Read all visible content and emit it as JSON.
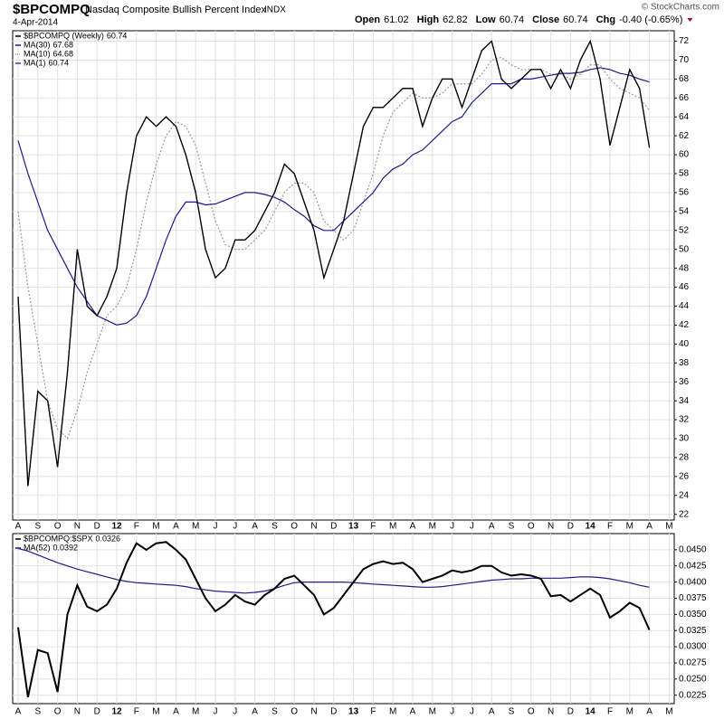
{
  "chart_data": [
    {
      "type": "line",
      "title": "$BPCOMPQ",
      "subtitle": "Nasdaq Composite Bullish Percent Index",
      "exchange": "INDX",
      "date": "4-Apr-2014",
      "source": "© StockCharts.com",
      "stats": [
        [
          "Open",
          "61.02"
        ],
        [
          "High",
          "62.82"
        ],
        [
          "Low",
          "60.74"
        ],
        [
          "Close",
          "60.74"
        ],
        [
          "Chg",
          "-0.40 (-0.65%)"
        ]
      ],
      "categories": [
        "A",
        null,
        "S",
        null,
        "O",
        null,
        "N",
        null,
        "D",
        null,
        "12",
        null,
        "F",
        null,
        "M",
        null,
        "A",
        null,
        "M",
        null,
        "J",
        null,
        "J",
        null,
        "A",
        null,
        "S",
        null,
        "O",
        null,
        "N",
        null,
        "D",
        null,
        "13",
        null,
        "F",
        null,
        "M",
        null,
        "A",
        null,
        "M",
        null,
        "J",
        null,
        "J",
        null,
        "A",
        null,
        "S",
        null,
        "O",
        null,
        "N",
        null,
        "D",
        null,
        "14",
        null,
        "F",
        null,
        "M",
        null,
        "A",
        null,
        "M"
      ],
      "series": [
        {
          "name": "$BPCOMPQ (Weekly)",
          "color": "#000000",
          "values": [
            45,
            25,
            35,
            34,
            27,
            37,
            50,
            44,
            43,
            45,
            48,
            56,
            62,
            64,
            63,
            64,
            63,
            60,
            56,
            50,
            47,
            48,
            51,
            51,
            52,
            54,
            56,
            59,
            58,
            55,
            52,
            47,
            50,
            53,
            58,
            63,
            65,
            65,
            66,
            67,
            67,
            63,
            66,
            68,
            68,
            65,
            68,
            71,
            72,
            68,
            67,
            68,
            69,
            69,
            67,
            69,
            67,
            70,
            72,
            68,
            61,
            65,
            69,
            67,
            60.74,
            null,
            null
          ]
        },
        {
          "name": "MA(30)",
          "color": "#1c1c8a",
          "values": [
            61.5,
            58,
            55,
            52,
            50,
            48,
            46,
            44.5,
            43,
            42.5,
            42,
            42.2,
            43,
            45,
            48,
            51,
            53.5,
            55,
            55,
            54.7,
            54.8,
            55.2,
            55.6,
            56,
            56,
            55.8,
            55.5,
            55,
            54.2,
            53.5,
            52.5,
            52,
            52,
            53,
            54,
            55,
            56,
            57.5,
            58.5,
            59,
            60,
            60.5,
            61.5,
            62.5,
            63.5,
            64,
            65.5,
            66.5,
            67.5,
            67.5,
            67.5,
            68,
            68,
            68.2,
            68.4,
            68.6,
            68.6,
            68.7,
            69,
            69.2,
            69,
            68.6,
            68.4,
            68,
            67.68,
            null,
            null
          ]
        },
        {
          "name": "MA(10)",
          "color": "#9a9a9a",
          "dash": true,
          "values": [
            54,
            46,
            40,
            34,
            31,
            30,
            33,
            37,
            40,
            43,
            44,
            46,
            50,
            55,
            59,
            62,
            63.5,
            63,
            61,
            57,
            53,
            50.5,
            50,
            50,
            51,
            52,
            54,
            56,
            57,
            57,
            56,
            53,
            52,
            51,
            52,
            55,
            58,
            62,
            64.5,
            65.5,
            66.5,
            66,
            66,
            66.5,
            67.5,
            67.5,
            67.5,
            68.5,
            70,
            70.3,
            69.5,
            69,
            69,
            69,
            68.5,
            68.5,
            68,
            68.5,
            69.5,
            69.5,
            68,
            67,
            66.5,
            66,
            64.68,
            null,
            null
          ]
        },
        {
          "name": "MA(1)",
          "color": "#3a3ab0",
          "values": [
            45,
            25,
            35,
            34,
            27,
            37,
            50,
            44,
            43,
            45,
            48,
            56,
            62,
            64,
            63,
            64,
            63,
            60,
            56,
            50,
            47,
            48,
            51,
            51,
            52,
            54,
            56,
            59,
            58,
            55,
            52,
            47,
            50,
            53,
            58,
            63,
            65,
            65,
            66,
            67,
            67,
            63,
            66,
            68,
            68,
            65,
            68,
            71,
            72,
            68,
            67,
            68,
            69,
            69,
            67,
            69,
            67,
            70,
            72,
            68,
            61,
            65,
            69,
            67,
            60.74,
            null,
            null
          ]
        }
      ],
      "ylim": [
        21.4,
        73.1
      ],
      "yticks": [
        22,
        24,
        26,
        28,
        30,
        32,
        34,
        36,
        38,
        40,
        42,
        44,
        46,
        48,
        50,
        52,
        54,
        56,
        58,
        60,
        62,
        64,
        66,
        68,
        70,
        72
      ],
      "grid": true
    },
    {
      "type": "line",
      "categories": [
        "A",
        null,
        "S",
        null,
        "O",
        null,
        "N",
        null,
        "D",
        null,
        "12",
        null,
        "F",
        null,
        "M",
        null,
        "A",
        null,
        "M",
        null,
        "J",
        null,
        "J",
        null,
        "A",
        null,
        "S",
        null,
        "O",
        null,
        "N",
        null,
        "D",
        null,
        "13",
        null,
        "F",
        null,
        "M",
        null,
        "A",
        null,
        "M",
        null,
        "J",
        null,
        "J",
        null,
        "A",
        null,
        "S",
        null,
        "O",
        null,
        "N",
        null,
        "D",
        null,
        "14",
        null,
        "F",
        null,
        "M",
        null,
        "A",
        null,
        "M"
      ],
      "series": [
        {
          "name": "$BPCOMPQ:$SPX",
          "color": "#000000",
          "values": [
            0.033,
            0.0222,
            0.0295,
            0.029,
            0.023,
            0.035,
            0.0395,
            0.0362,
            0.0355,
            0.0365,
            0.039,
            0.043,
            0.046,
            0.045,
            0.046,
            0.0462,
            0.045,
            0.0435,
            0.0405,
            0.0375,
            0.0355,
            0.0365,
            0.038,
            0.037,
            0.0365,
            0.038,
            0.039,
            0.0405,
            0.041,
            0.0395,
            0.038,
            0.035,
            0.036,
            0.038,
            0.04,
            0.042,
            0.0428,
            0.0432,
            0.0428,
            0.043,
            0.042,
            0.04,
            0.0405,
            0.041,
            0.0418,
            0.0415,
            0.0418,
            0.0425,
            0.0425,
            0.0415,
            0.041,
            0.0412,
            0.041,
            0.0405,
            0.0378,
            0.038,
            0.037,
            0.038,
            0.039,
            0.038,
            0.0345,
            0.0355,
            0.0368,
            0.036,
            0.0326,
            null,
            null
          ]
        },
        {
          "name": "MA(52)",
          "color": "#1c1c8a",
          "values": [
            0.0452,
            0.0448,
            0.0442,
            0.0436,
            0.043,
            0.0425,
            0.042,
            0.0416,
            0.0412,
            0.0408,
            0.0404,
            0.0401,
            0.0399,
            0.0398,
            0.0397,
            0.0396,
            0.0395,
            0.0393,
            0.039,
            0.0388,
            0.0386,
            0.0385,
            0.0384,
            0.0383,
            0.0384,
            0.0386,
            0.039,
            0.0395,
            0.0399,
            0.04,
            0.04,
            0.04,
            0.04,
            0.04,
            0.0399,
            0.0398,
            0.0397,
            0.0396,
            0.0395,
            0.0394,
            0.0393,
            0.0392,
            0.0392,
            0.0393,
            0.0395,
            0.0397,
            0.0399,
            0.0401,
            0.0403,
            0.0404,
            0.0405,
            0.0405,
            0.0406,
            0.0406,
            0.0406,
            0.0406,
            0.0407,
            0.0408,
            0.0408,
            0.0407,
            0.0405,
            0.0402,
            0.0399,
            0.0395,
            0.0392,
            null,
            null
          ]
        }
      ],
      "ylim": [
        0.0212,
        0.0475
      ],
      "yticks": [
        0.0225,
        {
          "value": 0.025,
          "label": "0.0250"
        },
        0.0275,
        {
          "value": 0.03,
          "label": "0.0300"
        },
        0.0325,
        {
          "value": 0.035,
          "label": "0.0350"
        },
        0.0375,
        {
          "value": 0.04,
          "label": "0.0400"
        },
        0.0425,
        {
          "value": 0.045,
          "label": "0.0450"
        }
      ],
      "grid": true
    }
  ]
}
